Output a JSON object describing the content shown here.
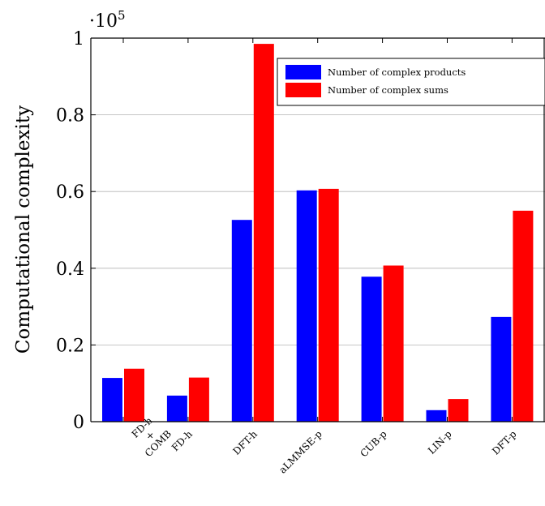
{
  "chart_data": {
    "type": "bar",
    "title": "",
    "xlabel": "",
    "ylabel": "Computational complexity",
    "y_scale_label": "·10",
    "y_scale_exponent": "5",
    "ylim": [
      0,
      1
    ],
    "yticks": [
      {
        "value": 0,
        "label": "0"
      },
      {
        "value": 0.2,
        "label": "0.2"
      },
      {
        "value": 0.4,
        "label": "0.4"
      },
      {
        "value": 0.6,
        "label": "0.6"
      },
      {
        "value": 0.8,
        "label": "0.8"
      },
      {
        "value": 1,
        "label": "1"
      }
    ],
    "grid": "horizontal",
    "legend_position": "top-right",
    "categories": [
      [
        "FD-h",
        "+",
        "COMB"
      ],
      [
        "FD-h"
      ],
      [
        "DFT-h"
      ],
      [
        "aLMMSE-p"
      ],
      [
        "CUB-p"
      ],
      [
        "LIN-p"
      ],
      [
        "DFT-p"
      ]
    ],
    "series": [
      {
        "name": "Number of complex products",
        "color": "#0000ff",
        "values": [
          0.114,
          0.068,
          0.526,
          0.603,
          0.378,
          0.03,
          0.273
        ]
      },
      {
        "name": "Number of complex sums",
        "color": "#ff0000",
        "values": [
          0.138,
          0.115,
          0.985,
          0.607,
          0.407,
          0.059,
          0.55
        ]
      }
    ]
  }
}
